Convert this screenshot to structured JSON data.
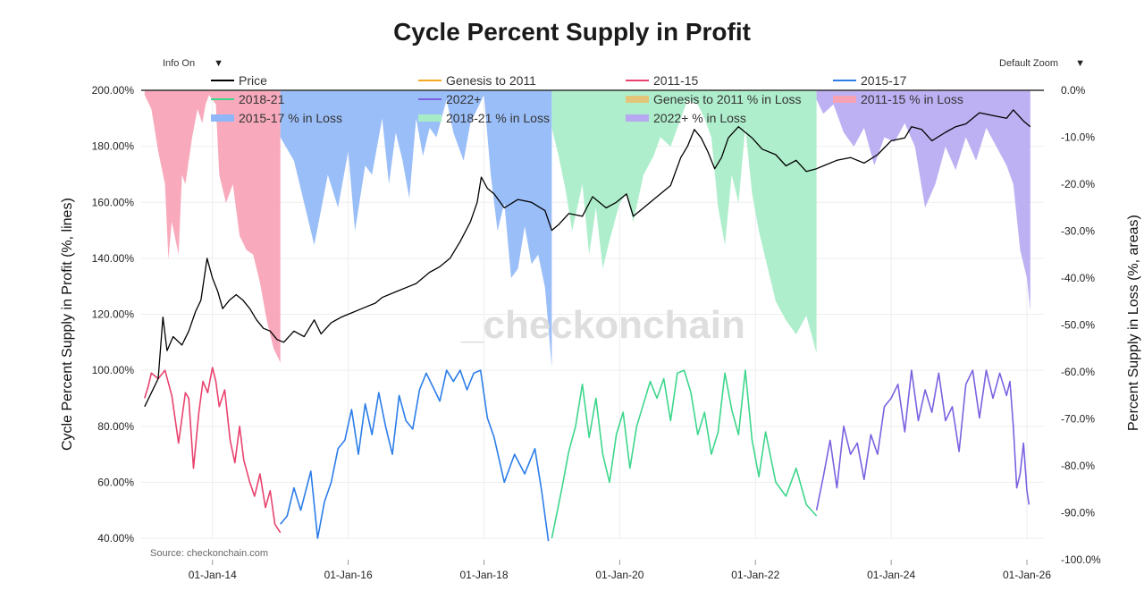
{
  "page": {
    "title": "Cycle Percent Supply in Profit",
    "info_toggle": "Info On",
    "zoom_select": "Default Zoom",
    "source": "Source: checkonchain.com",
    "watermark": "_checkonchain"
  },
  "colors": {
    "price": "#000000",
    "genesis": "#f5a623",
    "c2011": "#e8436e",
    "c2015": "#2b7de9",
    "c2018": "#3dd68c",
    "c2022": "#7b61e0",
    "genesis_loss": "#e3c57a",
    "c2011_loss": "#f7a1b5",
    "c2015_loss": "#8fb7f7",
    "c2018_loss": "#a6ecc6",
    "c2022_loss": "#b7a8f2"
  },
  "chart_data": {
    "type": "line",
    "title": "Cycle Percent Supply in Profit",
    "ylabel_left": "Cycle Percent Supply in Profit (%, lines)",
    "ylabel_right": "Percent Supply in Loss (%, areas)",
    "y_left_range": [
      40,
      200
    ],
    "y_right_range": [
      -100,
      0
    ],
    "x_range": [
      2012.95,
      2026.25
    ],
    "x_ticks": [
      {
        "label": "01-Jan-14",
        "x": 2014.0
      },
      {
        "label": "01-Jan-16",
        "x": 2016.0
      },
      {
        "label": "01-Jan-18",
        "x": 2018.0
      },
      {
        "label": "01-Jan-20",
        "x": 2020.0
      },
      {
        "label": "01-Jan-22",
        "x": 2022.0
      },
      {
        "label": "01-Jan-24",
        "x": 2024.0
      },
      {
        "label": "01-Jan-26",
        "x": 2026.0
      }
    ],
    "y_left_ticks": [
      "200.00%",
      "180.00%",
      "160.00%",
      "140.00%",
      "120.00%",
      "100.00%",
      "80.00%",
      "60.00%",
      "40.00%"
    ],
    "y_right_ticks": [
      "0.0%",
      "-10.0%",
      "-20.0%",
      "-30.0%",
      "-40.0%",
      "-50.0%",
      "-60.0%",
      "-70.0%",
      "-80.0%",
      "-90.0%",
      "-100.0%"
    ],
    "legend": [
      {
        "label": "Price",
        "style": "line",
        "color_key": "price"
      },
      {
        "label": "Genesis to 2011",
        "style": "line",
        "color_key": "genesis"
      },
      {
        "label": "2011-15",
        "style": "line",
        "color_key": "c2011"
      },
      {
        "label": "2015-17",
        "style": "line",
        "color_key": "c2015"
      },
      {
        "label": "2018-21",
        "style": "line",
        "color_key": "c2018"
      },
      {
        "label": "2022+",
        "style": "line",
        "color_key": "c2022"
      },
      {
        "label": "Genesis to 2011 % in Loss",
        "style": "area",
        "color_key": "genesis_loss"
      },
      {
        "label": "2011-15  % in Loss",
        "style": "area",
        "color_key": "c2011_loss"
      },
      {
        "label": "2015-17  % in Loss",
        "style": "area",
        "color_key": "c2015_loss"
      },
      {
        "label": "2018-21  % in Loss",
        "style": "area",
        "color_key": "c2018_loss"
      },
      {
        "label": "2022+  % in Loss",
        "style": "area",
        "color_key": "c2022_loss"
      }
    ],
    "price_series": {
      "name": "Price",
      "axis": "left",
      "x": [
        2013.0,
        2013.08,
        2013.2,
        2013.27,
        2013.33,
        2013.42,
        2013.55,
        2013.65,
        2013.75,
        2013.83,
        2013.92,
        2014.0,
        2014.08,
        2014.15,
        2014.25,
        2014.35,
        2014.45,
        2014.55,
        2014.65,
        2014.75,
        2014.85,
        2014.95,
        2015.05,
        2015.2,
        2015.35,
        2015.5,
        2015.6,
        2015.75,
        2015.9,
        2016.0,
        2016.2,
        2016.4,
        2016.5,
        2016.7,
        2016.9,
        2017.0,
        2017.2,
        2017.35,
        2017.5,
        2017.65,
        2017.8,
        2017.9,
        2017.96,
        2018.05,
        2018.15,
        2018.3,
        2018.5,
        2018.7,
        2018.9,
        2019.0,
        2019.1,
        2019.25,
        2019.45,
        2019.6,
        2019.8,
        2019.95,
        2020.1,
        2020.2,
        2020.35,
        2020.5,
        2020.6,
        2020.75,
        2020.9,
        2021.0,
        2021.1,
        2021.2,
        2021.3,
        2021.4,
        2021.5,
        2021.6,
        2021.75,
        2021.85,
        2021.95,
        2022.1,
        2022.3,
        2022.45,
        2022.6,
        2022.75,
        2022.9,
        2023.0,
        2023.2,
        2023.4,
        2023.6,
        2023.8,
        2024.0,
        2024.2,
        2024.3,
        2024.45,
        2024.6,
        2024.8,
        2024.95,
        2025.1,
        2025.3,
        2025.5,
        2025.7,
        2025.8,
        2025.95,
        2026.05
      ],
      "y": [
        87,
        91,
        97,
        119,
        107,
        112,
        109,
        114,
        121,
        125,
        140,
        133,
        128,
        122,
        125,
        127,
        125,
        122,
        118,
        115,
        114,
        111,
        110,
        114,
        112,
        118,
        113,
        117,
        119,
        120,
        122,
        124,
        126,
        128,
        130,
        131,
        135,
        137,
        140,
        146,
        153,
        160,
        169,
        165,
        163,
        158,
        161,
        160,
        157,
        150,
        152,
        156,
        155,
        162,
        158,
        160,
        163,
        155,
        158,
        161,
        163,
        166,
        176,
        180,
        186,
        183,
        178,
        172,
        176,
        183,
        187,
        185,
        183,
        179,
        177,
        173,
        175,
        171,
        172,
        173,
        175,
        176,
        174,
        177,
        182,
        183,
        187,
        186,
        182,
        185,
        187,
        188,
        192,
        191,
        190,
        193,
        189,
        187
      ]
    },
    "cycle_series": [
      {
        "name": "2011-15",
        "color_key": "c2011",
        "x": [
          2013.0,
          2013.05,
          2013.1,
          2013.2,
          2013.3,
          2013.4,
          2013.5,
          2013.6,
          2013.65,
          2013.72,
          2013.8,
          2013.86,
          2013.93,
          2014.0,
          2014.05,
          2014.1,
          2014.18,
          2014.26,
          2014.33,
          2014.4,
          2014.46,
          2014.55,
          2014.62,
          2014.7,
          2014.78,
          2014.85,
          2014.92,
          2015.0
        ],
        "y": [
          90,
          94,
          99,
          97,
          100,
          91,
          74,
          92,
          90,
          65,
          85,
          96,
          92,
          101,
          96,
          87,
          93,
          75,
          67,
          80,
          68,
          60,
          55,
          63,
          51,
          57,
          45,
          42
        ]
      },
      {
        "name": "2015-17",
        "color_key": "c2015",
        "x": [
          2015.0,
          2015.1,
          2015.2,
          2015.3,
          2015.45,
          2015.55,
          2015.65,
          2015.75,
          2015.85,
          2015.95,
          2016.05,
          2016.15,
          2016.25,
          2016.35,
          2016.45,
          2016.55,
          2016.65,
          2016.75,
          2016.85,
          2016.95,
          2017.05,
          2017.15,
          2017.25,
          2017.35,
          2017.45,
          2017.55,
          2017.65,
          2017.75,
          2017.85,
          2017.95,
          2018.05,
          2018.15,
          2018.3,
          2018.45,
          2018.6,
          2018.75,
          2018.85,
          2018.95
        ],
        "y": [
          45,
          48,
          58,
          50,
          64,
          40,
          53,
          60,
          72,
          75,
          86,
          70,
          88,
          77,
          92,
          80,
          70,
          91,
          82,
          79,
          93,
          99,
          94,
          89,
          100,
          96,
          100,
          93,
          99,
          100,
          83,
          76,
          60,
          70,
          63,
          72,
          57,
          39
        ]
      },
      {
        "name": "2018-21",
        "color_key": "c2018",
        "x": [
          2019.0,
          2019.05,
          2019.15,
          2019.25,
          2019.35,
          2019.45,
          2019.55,
          2019.65,
          2019.75,
          2019.85,
          2019.95,
          2020.05,
          2020.15,
          2020.25,
          2020.35,
          2020.45,
          2020.55,
          2020.65,
          2020.75,
          2020.85,
          2020.95,
          2021.05,
          2021.15,
          2021.25,
          2021.35,
          2021.45,
          2021.55,
          2021.65,
          2021.75,
          2021.85,
          2021.95,
          2022.05,
          2022.15,
          2022.3,
          2022.45,
          2022.6,
          2022.75,
          2022.9
        ],
        "y": [
          40,
          46,
          58,
          71,
          80,
          95,
          76,
          90,
          70,
          60,
          77,
          85,
          65,
          80,
          88,
          96,
          90,
          97,
          82,
          99,
          100,
          92,
          77,
          85,
          70,
          78,
          99,
          86,
          77,
          100,
          75,
          62,
          78,
          60,
          55,
          65,
          52,
          48
        ]
      },
      {
        "name": "2022+",
        "color_key": "c2022",
        "x": [
          2022.9,
          2023.0,
          2023.1,
          2023.2,
          2023.3,
          2023.4,
          2023.5,
          2023.6,
          2023.7,
          2023.8,
          2023.9,
          2024.0,
          2024.1,
          2024.2,
          2024.3,
          2024.4,
          2024.5,
          2024.6,
          2024.7,
          2024.8,
          2024.9,
          2025.0,
          2025.1,
          2025.2,
          2025.3,
          2025.4,
          2025.5,
          2025.6,
          2025.7,
          2025.75,
          2025.8,
          2025.85,
          2025.9,
          2025.95,
          2026.0,
          2026.03
        ],
        "y": [
          50,
          62,
          75,
          58,
          80,
          70,
          74,
          61,
          77,
          70,
          87,
          90,
          95,
          78,
          100,
          82,
          93,
          85,
          99,
          82,
          87,
          71,
          95,
          100,
          83,
          100,
          90,
          99,
          91,
          96,
          80,
          58,
          63,
          74,
          57,
          52
        ]
      }
    ],
    "loss_areas": [
      {
        "name": "2011-15  % in Loss",
        "color_key": "c2011_loss",
        "axis": "right",
        "x": [
          2013.0,
          2013.1,
          2013.2,
          2013.3,
          2013.35,
          2013.4,
          2013.5,
          2013.55,
          2013.6,
          2013.7,
          2013.78,
          2013.85,
          2013.9,
          2013.95,
          2014.0,
          2014.05,
          2014.1,
          2014.2,
          2014.3,
          2014.4,
          2014.5,
          2014.6,
          2014.7,
          2014.8,
          2014.9,
          2015.0
        ],
        "y": [
          -1,
          -4,
          -13,
          -20,
          -36,
          -28,
          -35,
          -18,
          -20,
          -10,
          -4,
          -7,
          -3,
          -1,
          -2,
          -3,
          -18,
          -24,
          -20,
          -31,
          -34,
          -35,
          -41,
          -49,
          -55,
          -58
        ]
      },
      {
        "name": "2015-17  % in Loss",
        "color_key": "c2015_loss",
        "axis": "right",
        "x": [
          2015.0,
          2015.2,
          2015.35,
          2015.5,
          2015.7,
          2015.85,
          2016.0,
          2016.1,
          2016.25,
          2016.35,
          2016.5,
          2016.6,
          2016.7,
          2016.8,
          2016.9,
          2017.0,
          2017.1,
          2017.2,
          2017.3,
          2017.45,
          2017.55,
          2017.7,
          2017.8,
          2017.9,
          2018.0,
          2018.1,
          2018.2,
          2018.3,
          2018.4,
          2018.5,
          2018.6,
          2018.7,
          2018.8,
          2018.9,
          2019.0
        ],
        "y": [
          -10,
          -15,
          -24,
          -33,
          -18,
          -25,
          -13,
          -30,
          -16,
          -18,
          -6,
          -20,
          -9,
          -15,
          -23,
          -6,
          -14,
          -8,
          -10,
          -2,
          -9,
          -15,
          -7,
          -4,
          -1,
          -18,
          -30,
          -24,
          -40,
          -38,
          -29,
          -37,
          -35,
          -42,
          -59
        ]
      },
      {
        "name": "2018-21  % in Loss",
        "color_key": "c2018_loss",
        "axis": "right",
        "x": [
          2019.0,
          2019.1,
          2019.2,
          2019.3,
          2019.45,
          2019.55,
          2019.65,
          2019.75,
          2019.85,
          2020.0,
          2020.1,
          2020.2,
          2020.35,
          2020.5,
          2020.6,
          2020.75,
          2020.9,
          2021.0,
          2021.15,
          2021.25,
          2021.35,
          2021.45,
          2021.55,
          2021.65,
          2021.75,
          2021.85,
          2021.95,
          2022.05,
          2022.15,
          2022.3,
          2022.45,
          2022.6,
          2022.75,
          2022.9
        ],
        "y": [
          -8,
          -14,
          -21,
          -30,
          -20,
          -35,
          -25,
          -38,
          -32,
          -24,
          -22,
          -28,
          -18,
          -14,
          -10,
          -12,
          -6,
          -2,
          -3,
          -6,
          -10,
          -25,
          -33,
          -18,
          -24,
          -8,
          -22,
          -30,
          -36,
          -45,
          -49,
          -52,
          -48,
          -56
        ]
      },
      {
        "name": "2022+  % in Loss",
        "color_key": "c2022_loss",
        "axis": "right",
        "x": [
          2022.9,
          2023.0,
          2023.15,
          2023.3,
          2023.45,
          2023.6,
          2023.75,
          2023.9,
          2024.05,
          2024.2,
          2024.35,
          2024.5,
          2024.65,
          2024.8,
          2024.95,
          2025.1,
          2025.25,
          2025.4,
          2025.55,
          2025.7,
          2025.8,
          2025.9,
          2026.0,
          2026.05
        ],
        "y": [
          -2,
          -5,
          -3,
          -9,
          -12,
          -8,
          -16,
          -10,
          -11,
          -7,
          -12,
          -25,
          -20,
          -12,
          -17,
          -10,
          -15,
          -8,
          -12,
          -16,
          -20,
          -34,
          -40,
          -47
        ]
      }
    ]
  }
}
